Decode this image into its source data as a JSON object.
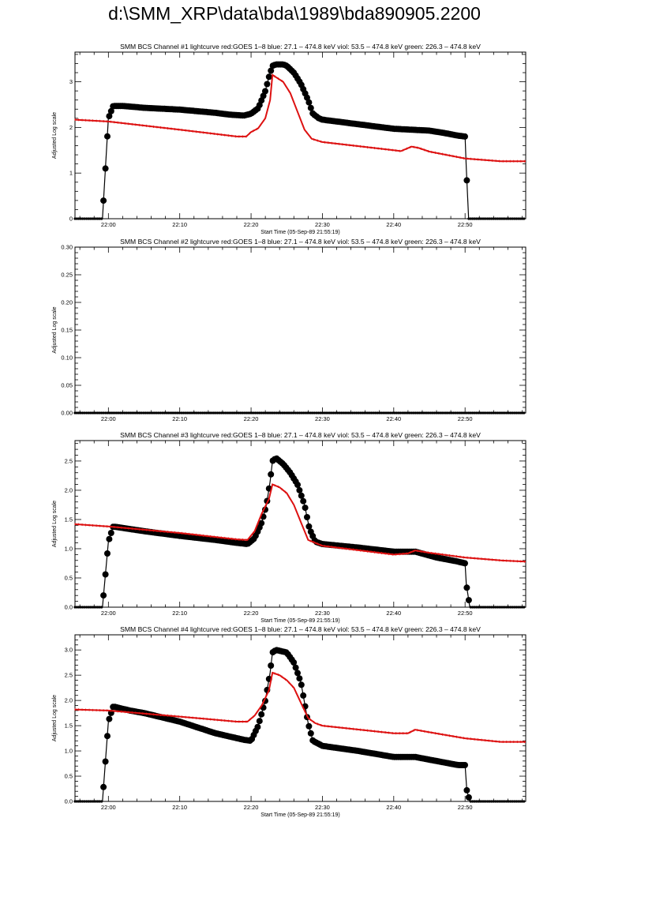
{
  "page": {
    "title": "d:\\SMM_XRP\\data\\bda\\1989\\bda890905.2200"
  },
  "colors": {
    "goes": "#dd1111",
    "bcs": "#000000"
  },
  "chart_data": [
    {
      "type": "line",
      "title": "SMM BCS Channel #1 lightcurve  red:GOES 1–8  blue: 27.1 – 474.8 keV  viol: 53.5 – 474.8 keV  green: 226.3 – 474.8 keV",
      "xlabel": "Start Time (05-Sep-89 21:55:19)",
      "ylabel": "Adjusted Log scale",
      "xlim": [
        "21:55:19",
        "22:58:30"
      ],
      "ylim": [
        0,
        3.65
      ],
      "x_ticks": [
        "22:00",
        "22:10",
        "22:20",
        "22:30",
        "22:40",
        "22:50"
      ],
      "y_ticks": [
        "0",
        "1",
        "2",
        "3"
      ],
      "series": [
        {
          "marker": "filled-circle",
          "points": [
            [
              "21:55:19",
              0
            ],
            [
              "21:59:10",
              0
            ],
            [
              "22:00:00",
              2.2
            ],
            [
              "22:00:40",
              2.47
            ],
            [
              "22:02:00",
              2.47
            ],
            [
              "22:05:00",
              2.43
            ],
            [
              "22:10:00",
              2.39
            ],
            [
              "22:15:00",
              2.32
            ],
            [
              "22:17:00",
              2.28
            ],
            [
              "22:19:00",
              2.26
            ],
            [
              "22:20:00",
              2.3
            ],
            [
              "22:21:00",
              2.42
            ],
            [
              "22:22:00",
              2.8
            ],
            [
              "22:22:30",
              3.1
            ],
            [
              "22:23:00",
              3.35
            ],
            [
              "22:23:30",
              3.38
            ],
            [
              "22:24:30",
              3.38
            ],
            [
              "22:25:00",
              3.35
            ],
            [
              "22:26:00",
              3.2
            ],
            [
              "22:27:00",
              2.95
            ],
            [
              "22:28:00",
              2.6
            ],
            [
              "22:28:40",
              2.3
            ],
            [
              "22:29:30",
              2.2
            ],
            [
              "22:30:00",
              2.17
            ],
            [
              "22:35:00",
              2.07
            ],
            [
              "22:40:00",
              1.97
            ],
            [
              "22:45:00",
              1.93
            ],
            [
              "22:47:00",
              1.88
            ],
            [
              "22:49:00",
              1.82
            ],
            [
              "22:50:00",
              1.8
            ],
            [
              "22:50:10",
              1.12
            ],
            [
              "22:50:30",
              0
            ],
            [
              "22:58:30",
              0
            ]
          ]
        },
        {
          "marker": "none",
          "points": [
            [
              "21:55:19",
              2.17
            ],
            [
              "22:00:00",
              2.13
            ],
            [
              "22:10:00",
              1.95
            ],
            [
              "22:18:00",
              1.8
            ],
            [
              "22:19:20",
              1.8
            ],
            [
              "22:20:00",
              1.9
            ],
            [
              "22:21:00",
              1.98
            ],
            [
              "22:22:00",
              2.2
            ],
            [
              "22:22:40",
              2.6
            ],
            [
              "22:23:00",
              3.15
            ],
            [
              "22:23:30",
              3.1
            ],
            [
              "22:24:30",
              3.0
            ],
            [
              "22:25:30",
              2.75
            ],
            [
              "22:26:30",
              2.35
            ],
            [
              "22:27:30",
              1.95
            ],
            [
              "22:28:30",
              1.75
            ],
            [
              "22:30:00",
              1.68
            ],
            [
              "22:40:00",
              1.5
            ],
            [
              "22:41:00",
              1.48
            ],
            [
              "22:42:30",
              1.58
            ],
            [
              "22:43:30",
              1.55
            ],
            [
              "22:45:00",
              1.47
            ],
            [
              "22:50:00",
              1.32
            ],
            [
              "22:55:00",
              1.26
            ],
            [
              "22:58:30",
              1.26
            ]
          ]
        }
      ]
    },
    {
      "type": "line",
      "title": "SMM BCS Channel #2 lightcurve  red:GOES 1–8  blue: 27.1 – 474.8 keV  viol: 53.5 – 474.8 keV  green: 226.3 – 474.8 keV",
      "xlabel": "",
      "ylabel": "Adjusted Log scale",
      "xlim": [
        "21:55:19",
        "22:58:30"
      ],
      "ylim": [
        0,
        0.3
      ],
      "x_ticks": [
        "22:00",
        "22:10",
        "22:20",
        "22:30",
        "22:40",
        "22:50"
      ],
      "y_ticks": [
        "0.00",
        "0.05",
        "0.10",
        "0.15",
        "0.20",
        "0.25",
        "0.30"
      ],
      "series": [
        {
          "marker": "filled-circle",
          "points": [
            [
              "21:55:19",
              0
            ],
            [
              "22:05:00",
              0
            ],
            [
              "22:15:00",
              0
            ],
            [
              "22:25:00",
              0
            ],
            [
              "22:35:00",
              0
            ],
            [
              "22:45:00",
              0
            ],
            [
              "22:58:30",
              0
            ]
          ]
        }
      ]
    },
    {
      "type": "line",
      "title": "SMM BCS Channel #3 lightcurve  red:GOES 1–8  blue: 27.1 – 474.8 keV  viol: 53.5 – 474.8 keV  green: 226.3 – 474.8 keV",
      "xlabel": "Start Time (05-Sep-89 21:55:19)",
      "ylabel": "Adjusted Log scale",
      "xlim": [
        "21:55:19",
        "22:58:30"
      ],
      "ylim": [
        0,
        2.85
      ],
      "x_ticks": [
        "22:00",
        "22:10",
        "22:20",
        "22:30",
        "22:40",
        "22:50"
      ],
      "y_ticks": [
        "0.0",
        "0.5",
        "1.0",
        "1.5",
        "2.0",
        "2.5"
      ],
      "series": [
        {
          "marker": "filled-circle",
          "points": [
            [
              "21:55:19",
              0
            ],
            [
              "21:59:10",
              0
            ],
            [
              "22:00:00",
              1.12
            ],
            [
              "22:00:40",
              1.38
            ],
            [
              "22:05:00",
              1.3
            ],
            [
              "22:10:00",
              1.22
            ],
            [
              "22:15:00",
              1.15
            ],
            [
              "22:18:00",
              1.1
            ],
            [
              "22:19:30",
              1.08
            ],
            [
              "22:20:30",
              1.18
            ],
            [
              "22:21:30",
              1.45
            ],
            [
              "22:22:10",
              1.75
            ],
            [
              "22:22:40",
              2.15
            ],
            [
              "22:23:00",
              2.5
            ],
            [
              "22:23:30",
              2.55
            ],
            [
              "22:24:30",
              2.45
            ],
            [
              "22:25:30",
              2.3
            ],
            [
              "22:26:30",
              2.1
            ],
            [
              "22:27:30",
              1.75
            ],
            [
              "22:28:10",
              1.35
            ],
            [
              "22:29:00",
              1.12
            ],
            [
              "22:30:00",
              1.08
            ],
            [
              "22:35:00",
              1.02
            ],
            [
              "22:40:00",
              0.95
            ],
            [
              "22:43:00",
              0.95
            ],
            [
              "22:46:00",
              0.85
            ],
            [
              "22:49:00",
              0.78
            ],
            [
              "22:50:00",
              0.75
            ],
            [
              "22:50:10",
              0.4
            ],
            [
              "22:50:40",
              0
            ],
            [
              "22:58:30",
              0
            ]
          ]
        },
        {
          "marker": "none",
          "points": [
            [
              "21:55:19",
              1.42
            ],
            [
              "22:00:00",
              1.38
            ],
            [
              "22:10:00",
              1.27
            ],
            [
              "22:18:00",
              1.16
            ],
            [
              "22:19:30",
              1.15
            ],
            [
              "22:20:30",
              1.3
            ],
            [
              "22:21:30",
              1.6
            ],
            [
              "22:22:30",
              1.85
            ],
            [
              "22:23:00",
              2.1
            ],
            [
              "22:24:00",
              2.05
            ],
            [
              "22:25:00",
              1.95
            ],
            [
              "22:26:00",
              1.75
            ],
            [
              "22:27:00",
              1.45
            ],
            [
              "22:28:00",
              1.15
            ],
            [
              "22:30:00",
              1.05
            ],
            [
              "22:40:00",
              0.9
            ],
            [
              "22:42:00",
              0.92
            ],
            [
              "22:43:00",
              0.97
            ],
            [
              "22:45:00",
              0.93
            ],
            [
              "22:50:00",
              0.85
            ],
            [
              "22:55:00",
              0.8
            ],
            [
              "22:58:30",
              0.78
            ]
          ]
        }
      ]
    },
    {
      "type": "line",
      "title": "SMM BCS Channel #4 lightcurve  red:GOES 1–8  blue: 27.1 – 474.8 keV  viol: 53.5 – 474.8 keV  green: 226.3 – 474.8 keV",
      "xlabel": "Start Time (05-Sep-89 21:55:19)",
      "ylabel": "Adjusted Log scale",
      "xlim": [
        "21:55:19",
        "22:58:30"
      ],
      "ylim": [
        0,
        3.3
      ],
      "x_ticks": [
        "22:00",
        "22:10",
        "22:20",
        "22:30",
        "22:40",
        "22:50"
      ],
      "y_ticks": [
        "0.0",
        "0.5",
        "1.0",
        "1.5",
        "2.0",
        "2.5",
        "3.0"
      ],
      "series": [
        {
          "marker": "filled-circle",
          "points": [
            [
              "21:55:19",
              0
            ],
            [
              "21:59:10",
              0
            ],
            [
              "22:00:00",
              1.58
            ],
            [
              "22:00:40",
              1.88
            ],
            [
              "22:03:00",
              1.8
            ],
            [
              "22:05:00",
              1.75
            ],
            [
              "22:10:00",
              1.58
            ],
            [
              "22:15:00",
              1.35
            ],
            [
              "22:19:00",
              1.22
            ],
            [
              "22:20:00",
              1.2
            ],
            [
              "22:21:00",
              1.5
            ],
            [
              "22:22:00",
              2.0
            ],
            [
              "22:22:40",
              2.55
            ],
            [
              "22:23:00",
              2.95
            ],
            [
              "22:23:30",
              3.0
            ],
            [
              "22:25:00",
              2.95
            ],
            [
              "22:26:00",
              2.75
            ],
            [
              "22:27:00",
              2.35
            ],
            [
              "22:28:00",
              1.55
            ],
            [
              "22:28:40",
              1.2
            ],
            [
              "22:30:00",
              1.1
            ],
            [
              "22:35:00",
              1.0
            ],
            [
              "22:40:00",
              0.88
            ],
            [
              "22:43:00",
              0.88
            ],
            [
              "22:46:00",
              0.8
            ],
            [
              "22:49:00",
              0.72
            ],
            [
              "22:50:00",
              0.72
            ],
            [
              "22:50:15",
              0.22
            ],
            [
              "22:50:40",
              0
            ],
            [
              "22:58:30",
              0
            ]
          ]
        },
        {
          "marker": "none",
          "points": [
            [
              "21:55:19",
              1.82
            ],
            [
              "22:00:00",
              1.8
            ],
            [
              "22:10:00",
              1.68
            ],
            [
              "22:18:00",
              1.58
            ],
            [
              "22:19:30",
              1.58
            ],
            [
              "22:20:30",
              1.7
            ],
            [
              "22:21:30",
              1.9
            ],
            [
              "22:22:30",
              2.2
            ],
            [
              "22:23:00",
              2.55
            ],
            [
              "22:24:00",
              2.5
            ],
            [
              "22:25:00",
              2.4
            ],
            [
              "22:26:00",
              2.25
            ],
            [
              "22:27:00",
              1.95
            ],
            [
              "22:28:00",
              1.65
            ],
            [
              "22:29:00",
              1.55
            ],
            [
              "22:30:00",
              1.5
            ],
            [
              "22:40:00",
              1.35
            ],
            [
              "22:42:00",
              1.35
            ],
            [
              "22:43:00",
              1.42
            ],
            [
              "22:45:00",
              1.37
            ],
            [
              "22:50:00",
              1.25
            ],
            [
              "22:55:00",
              1.18
            ],
            [
              "22:58:30",
              1.18
            ]
          ]
        }
      ]
    }
  ]
}
